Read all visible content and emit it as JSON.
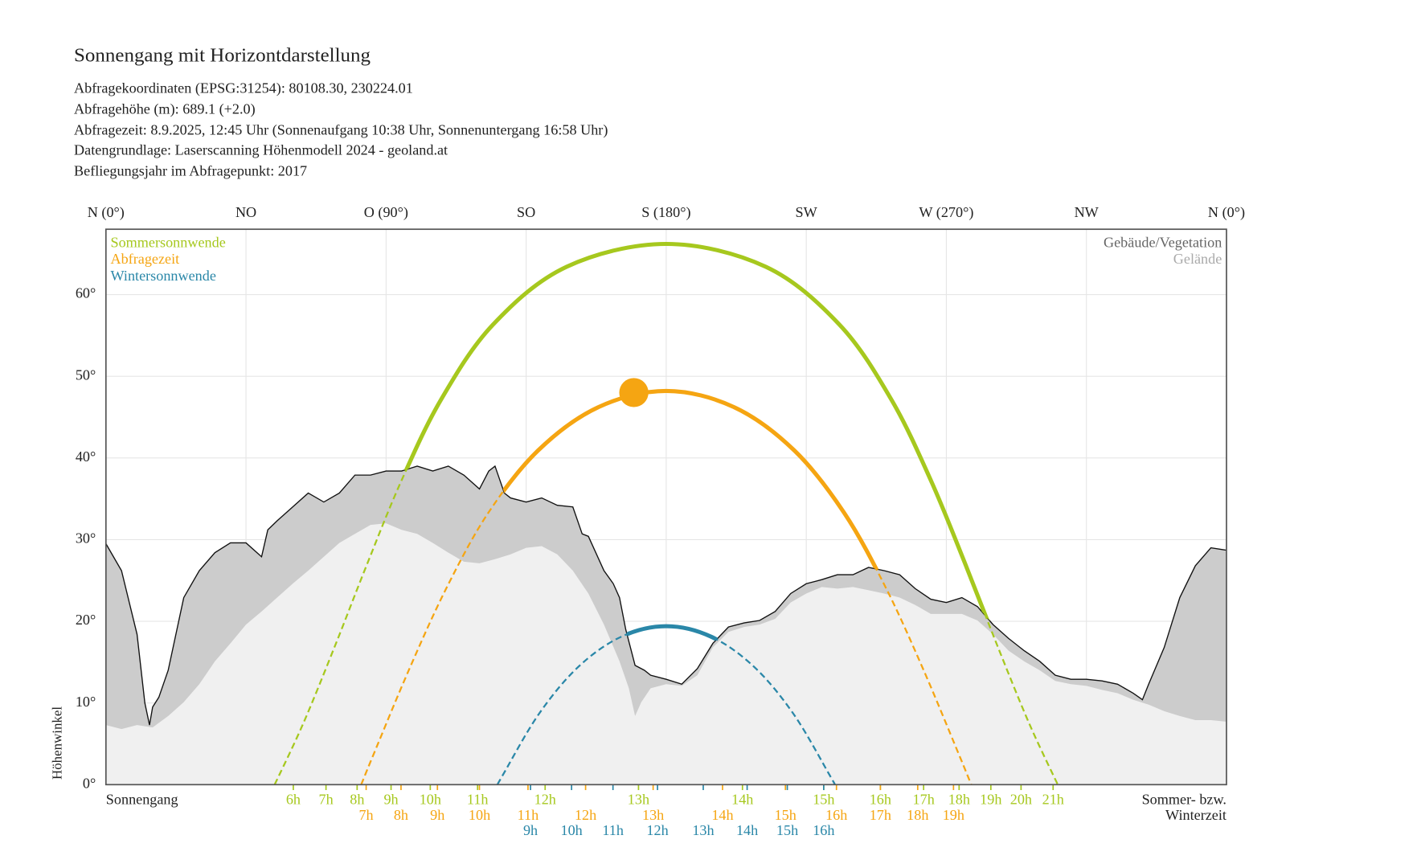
{
  "chart_data": {
    "type": "line",
    "title": "Sonnengang mit Horizontdarstellung",
    "info_lines": [
      "Abfragekoordinaten (EPSG:31254): 80108.30, 230224.01",
      "Abfragehöhe (m): 689.1 (+2.0)",
      "Abfragezeit: 8.9.2025, 12:45 Uhr (Sonnenaufgang 10:38 Uhr,  Sonnenuntergang 16:58 Uhr)",
      "Datengrundlage: Laserscanning Höhenmodell 2024 - geoland.at",
      "Befliegungsjahr im Abfragepunkt: 2017"
    ],
    "y_label": "Höhenwinkel",
    "row_label": "Sonnengang",
    "row_note": [
      "Sommer- bzw.",
      "Winterzeit"
    ],
    "xlim": [
      0,
      360
    ],
    "xticks": [
      {
        "value": 0,
        "label": "N (0°)"
      },
      {
        "value": 45,
        "label": "NO"
      },
      {
        "value": 90,
        "label": "O (90°)"
      },
      {
        "value": 135,
        "label": "SO"
      },
      {
        "value": 180,
        "label": "S (180°)"
      },
      {
        "value": 225,
        "label": "SW"
      },
      {
        "value": 270,
        "label": "W (270°)"
      },
      {
        "value": 315,
        "label": "NW"
      },
      {
        "value": 360,
        "label": "N (0°)"
      }
    ],
    "ylim": [
      0,
      68
    ],
    "yticks": [
      {
        "value": 0,
        "label": "0°"
      },
      {
        "value": 10,
        "label": "10°"
      },
      {
        "value": 20,
        "label": "20°"
      },
      {
        "value": 30,
        "label": "30°"
      },
      {
        "value": 40,
        "label": "40°"
      },
      {
        "value": 50,
        "label": "50°"
      },
      {
        "value": 60,
        "label": "60°"
      }
    ],
    "grid": true,
    "series": [
      {
        "name": "Sommersonnwende",
        "color": "#a6c81e",
        "x": [
          54.2,
          63.4,
          73.6,
          83.8,
          94.8,
          107.6,
          124.3,
          148.0,
          180,
          212.0,
          235.7,
          252.4,
          265.2,
          276.2,
          286.4,
          296.6,
          305.8
        ],
        "values": [
          0,
          7.5,
          17.0,
          26.9,
          37.1,
          47.1,
          56.3,
          63.4,
          66.2,
          63.4,
          56.3,
          47.1,
          37.1,
          26.9,
          17.0,
          7.5,
          0
        ],
        "hours": [
          "6h",
          "7h",
          "8h",
          "9h",
          "10h",
          "11h",
          "12h",
          "13h",
          "14h",
          "15h",
          "16h",
          "17h",
          "18h",
          "19h",
          "20h",
          "21h"
        ],
        "hours_x": [
          60.2,
          70.7,
          80.7,
          91.6,
          104.2,
          119.4,
          141.1,
          171.1,
          204.5,
          230.6,
          248.8,
          262.7,
          274.1,
          284.3,
          294.0,
          304.3
        ]
      },
      {
        "name": "Abfragezeit",
        "color": "#f5a512",
        "x": [
          82.0,
          86.3,
          97.4,
          109.3,
          122.7,
          138.8,
          158.1,
          180,
          201.9,
          221.2,
          237.3,
          250.7,
          262.6,
          273.7,
          278.0
        ],
        "values": [
          0,
          4.0,
          14.1,
          24.0,
          33.2,
          40.9,
          46.2,
          48.2,
          46.2,
          40.9,
          33.2,
          24.0,
          14.1,
          4.0,
          0
        ],
        "hours": [
          "7h",
          "8h",
          "9h",
          "10h",
          "11h",
          "12h",
          "13h",
          "14h",
          "15h",
          "16h",
          "17h",
          "18h",
          "19h"
        ],
        "hours_x": [
          83.6,
          94.8,
          106.5,
          120.0,
          135.6,
          154.1,
          175.8,
          198.1,
          218.3,
          234.7,
          248.8,
          260.8,
          272.3
        ]
      },
      {
        "name": "Wintersonnwende",
        "color": "#2a87a8",
        "x": [
          125.8,
          127.4,
          139.0,
          151.7,
          165.5,
          180,
          194.5,
          208.3,
          221.0,
          232.6,
          234.2
        ],
        "values": [
          0,
          1.1,
          8.6,
          14.4,
          18.1,
          19.4,
          18.1,
          14.4,
          8.6,
          1.1,
          0
        ],
        "hours": [
          "9h",
          "10h",
          "11h",
          "12h",
          "13h",
          "14h",
          "15h",
          "16h"
        ],
        "hours_x": [
          136.4,
          149.6,
          162.9,
          177.2,
          191.9,
          206.0,
          218.9,
          230.6
        ]
      }
    ],
    "sun_position": {
      "x": 169.6,
      "y": 48.0,
      "color": "#f5a512"
    },
    "terrain": [
      {
        "name": "Gebäude/Vegetation",
        "color": "#cccccc",
        "legend_color": "#666666",
        "x": [
          0,
          5,
          10,
          12.5,
          14,
          15,
          17,
          20,
          25,
          30,
          35,
          40,
          45,
          50,
          52,
          55,
          60,
          65,
          70,
          75,
          80,
          85,
          90,
          95,
          100,
          105,
          110,
          115,
          120,
          123,
          125,
          128,
          130,
          135,
          140,
          145,
          150,
          153,
          155,
          160,
          163,
          165,
          167,
          170,
          173,
          175,
          180,
          185,
          190,
          195,
          200,
          205,
          210,
          215,
          220,
          225,
          230,
          235,
          240,
          245,
          250,
          255,
          260,
          265,
          270,
          275,
          280,
          285,
          290,
          295,
          300,
          305,
          310,
          315,
          320,
          325,
          330,
          333,
          335,
          340,
          345,
          350,
          355,
          360
        ],
        "values": [
          29.5,
          26.2,
          18.4,
          10,
          7.3,
          9.5,
          10.7,
          14,
          22.9,
          26.2,
          28.4,
          29.6,
          29.6,
          27.9,
          31.2,
          32.3,
          34,
          35.7,
          34.6,
          35.7,
          37.9,
          37.9,
          38.4,
          38.4,
          39,
          38.4,
          39,
          37.9,
          36.2,
          38.4,
          39,
          35.7,
          35.1,
          34.6,
          35.1,
          34.2,
          34,
          30.7,
          30.4,
          26.2,
          24.6,
          22.9,
          19,
          14.6,
          14,
          13.4,
          12.9,
          12.3,
          14.2,
          17.3,
          19.3,
          19.8,
          20.1,
          21.2,
          23.4,
          24.6,
          25.1,
          25.7,
          25.7,
          26.6,
          26.2,
          25.7,
          24,
          22.7,
          22.3,
          22.9,
          21.8,
          19.6,
          17.9,
          16.4,
          15.1,
          13.4,
          12.9,
          12.9,
          12.7,
          12.3,
          11.2,
          10.4,
          12.3,
          16.8,
          22.9,
          26.8,
          29,
          28.7
        ]
      },
      {
        "name": "Gelände",
        "color": "#f0f0f0",
        "legend_color": "#aaaaaa",
        "x": [
          0,
          5,
          10,
          15,
          20,
          25,
          30,
          35,
          40,
          45,
          50,
          55,
          60,
          65,
          70,
          75,
          80,
          85,
          90,
          95,
          100,
          105,
          110,
          115,
          120,
          125,
          130,
          135,
          140,
          145,
          150,
          155,
          160,
          165,
          168,
          170,
          172,
          175,
          180,
          185,
          190,
          195,
          200,
          205,
          210,
          215,
          220,
          225,
          230,
          235,
          240,
          245,
          250,
          255,
          260,
          265,
          270,
          275,
          280,
          285,
          290,
          295,
          300,
          305,
          310,
          315,
          320,
          325,
          330,
          335,
          340,
          345,
          350,
          355,
          360
        ],
        "values": [
          7.3,
          6.8,
          7.3,
          7,
          8.4,
          10.1,
          12.3,
          15.1,
          17.3,
          19.6,
          21.2,
          22.9,
          24.6,
          26.2,
          27.9,
          29.6,
          30.7,
          31.8,
          32,
          31.2,
          30.7,
          29.6,
          28.4,
          27.3,
          27.1,
          27.6,
          28.2,
          29,
          29.2,
          28.2,
          26.2,
          23.4,
          19.6,
          15.1,
          11.8,
          8.4,
          10.1,
          11.8,
          12.3,
          12.1,
          13.4,
          16.8,
          18.7,
          19.3,
          19.6,
          20.3,
          22.3,
          23.4,
          24.2,
          24,
          24.2,
          23.8,
          23.4,
          22.9,
          22,
          20.9,
          20.9,
          20.9,
          20.1,
          18.4,
          16.4,
          15.1,
          14,
          12.7,
          12.3,
          12.1,
          11.6,
          11.2,
          10.4,
          9.8,
          9,
          8.4,
          7.9,
          7.9,
          7.7
        ]
      }
    ]
  }
}
